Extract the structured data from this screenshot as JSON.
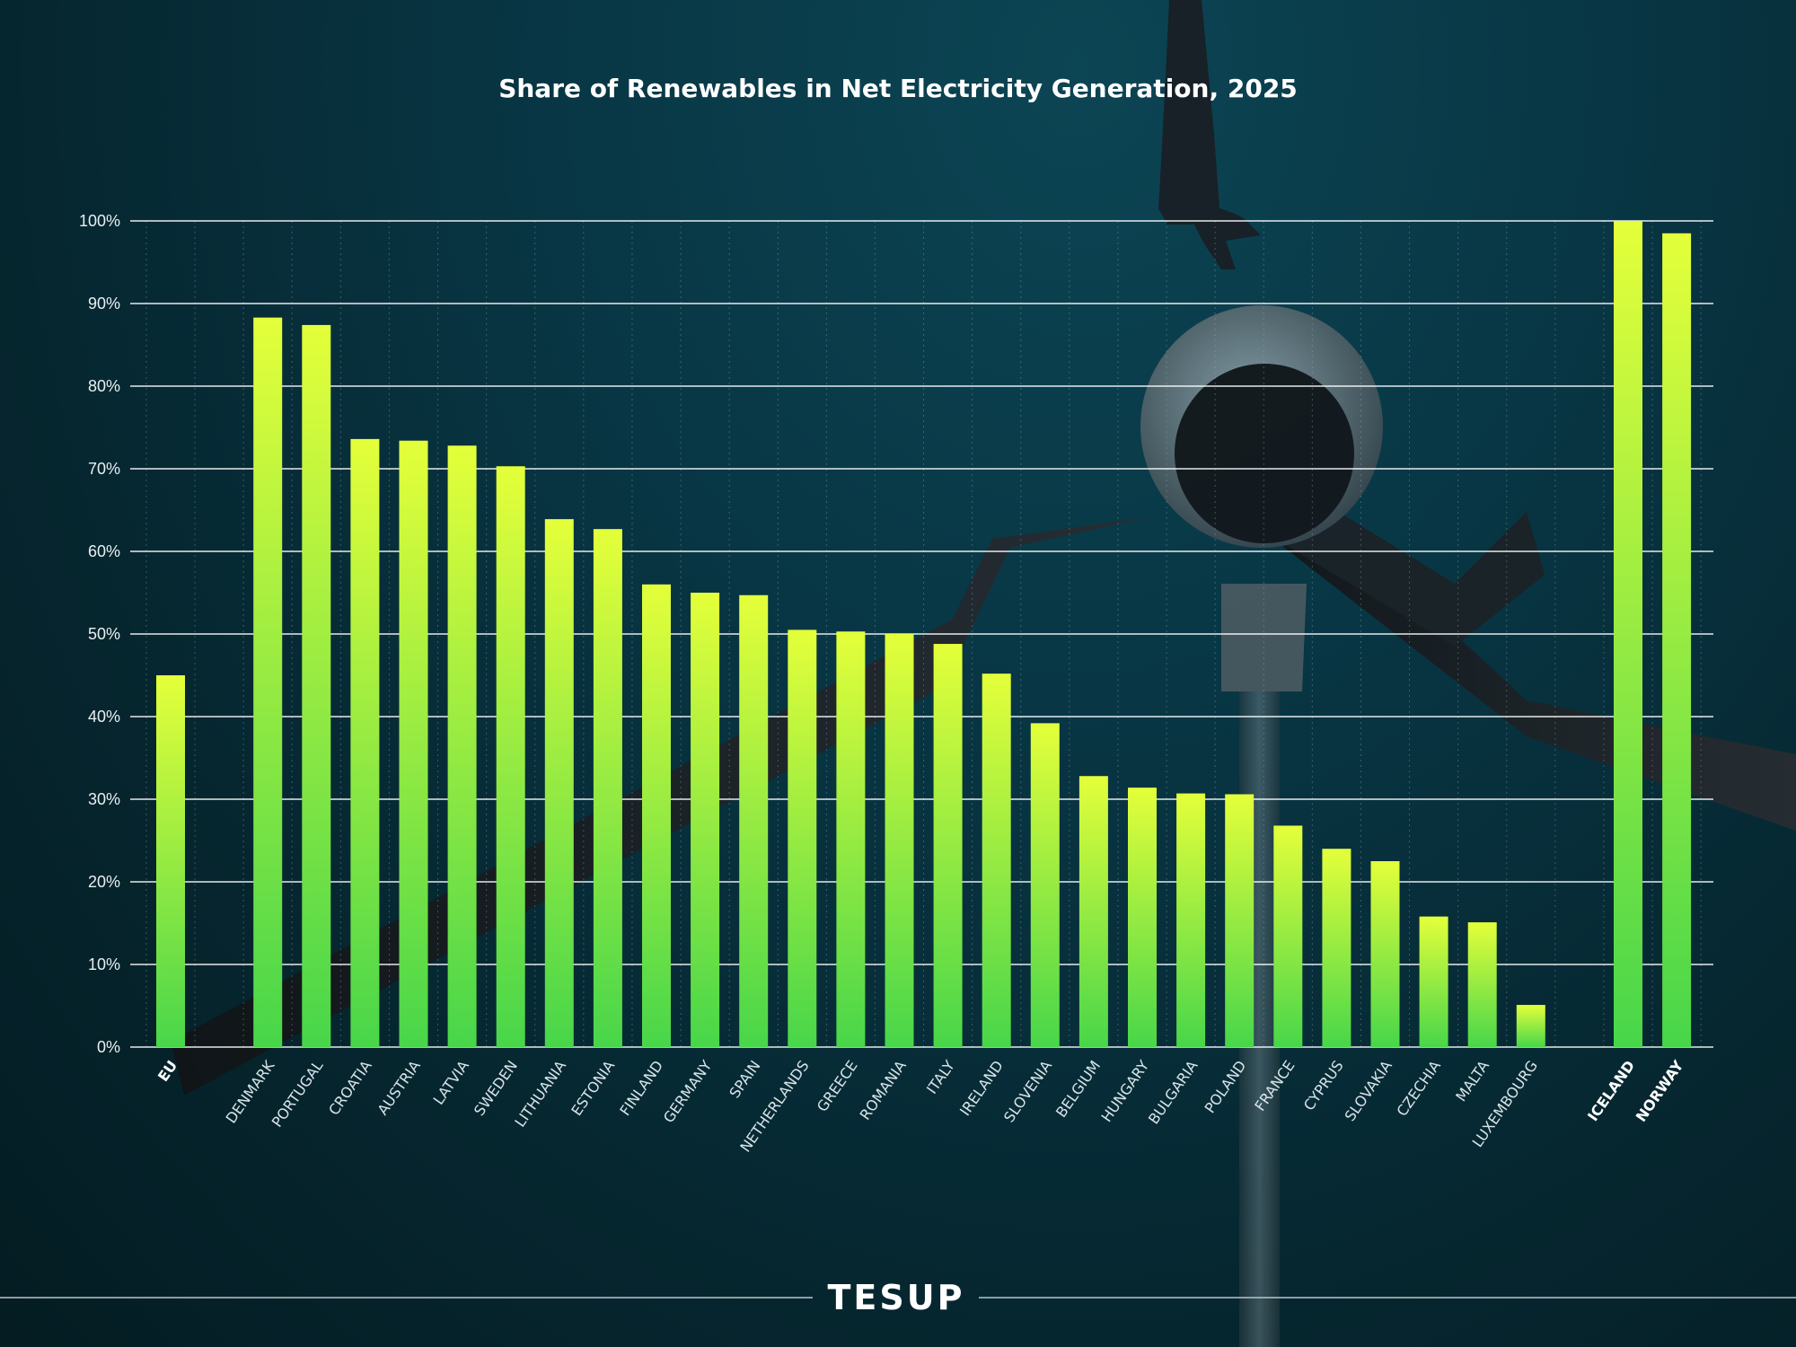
{
  "chart_data": {
    "type": "bar",
    "title": "Share of Renewables in Net Electricity Generation, 2025",
    "xlabel": "",
    "ylabel": "",
    "ylim": [
      0,
      100
    ],
    "grid": true,
    "y_ticks": [
      "0%",
      "10%",
      "20%",
      "30%",
      "40%",
      "50%",
      "60%",
      "70%",
      "80%",
      "90%",
      "100%"
    ],
    "categories": [
      "EU",
      "DENMARK",
      "PORTUGAL",
      "CROATIA",
      "AUSTRIA",
      "LATVIA",
      "SWEDEN",
      "LITHUANIA",
      "ESTONIA",
      "FINLAND",
      "GERMANY",
      "SPAIN",
      "NETHERLANDS",
      "GREECE",
      "ROMANIA",
      "ITALY",
      "IRELAND",
      "SLOVENIA",
      "BELGIUM",
      "HUNGARY",
      "BULGARIA",
      "POLAND",
      "FRANCE",
      "CYPRUS",
      "SLOVAKIA",
      "CZECHIA",
      "MALTA",
      "LUXEMBOURG",
      "ICELAND",
      "NORWAY"
    ],
    "values": [
      45.0,
      88.3,
      87.4,
      73.6,
      73.4,
      72.8,
      70.3,
      63.9,
      62.7,
      56.0,
      55.0,
      54.7,
      50.5,
      50.3,
      50.0,
      48.8,
      45.2,
      39.2,
      32.8,
      31.4,
      30.7,
      30.6,
      26.8,
      24.0,
      22.5,
      15.8,
      15.1,
      5.1,
      100.0,
      98.5
    ],
    "highlighted": [
      "EU",
      "ICELAND",
      "NORWAY"
    ],
    "colors": {
      "bar_top": "#e4ff3a",
      "bar_bottom": "#48d64a",
      "grid": "#ffffff"
    }
  },
  "brand": {
    "logo_text": "TESUP"
  }
}
